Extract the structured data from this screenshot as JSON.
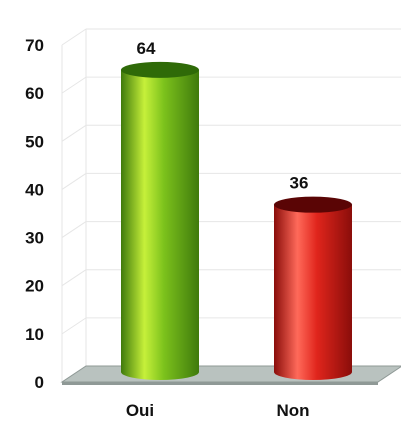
{
  "chart_data": {
    "type": "bar",
    "style": "3d-cylinder",
    "categories": [
      "Oui",
      "Non"
    ],
    "values": [
      64,
      36
    ],
    "data_labels": [
      "64",
      "36"
    ],
    "ylim": [
      0,
      70
    ],
    "yticks": [
      "0",
      "10",
      "20",
      "30",
      "40",
      "50",
      "60",
      "70"
    ],
    "ytick_values": [
      0,
      10,
      20,
      30,
      40,
      50,
      60,
      70
    ],
    "grid": true,
    "legend": "none",
    "title": "",
    "xlabel": "",
    "ylabel": "",
    "bar_colors": {
      "Oui": {
        "light": "#c6f03a",
        "mid": "#7cc21c",
        "dark": "#3f7a0c",
        "top": "#2f6a08"
      },
      "Non": {
        "light": "#ff6a5a",
        "mid": "#e0251c",
        "dark": "#8a0d0a",
        "top": "#5a0505"
      }
    },
    "floor_color": "#b9c2bf",
    "grid_color": "#e6e6e6"
  }
}
